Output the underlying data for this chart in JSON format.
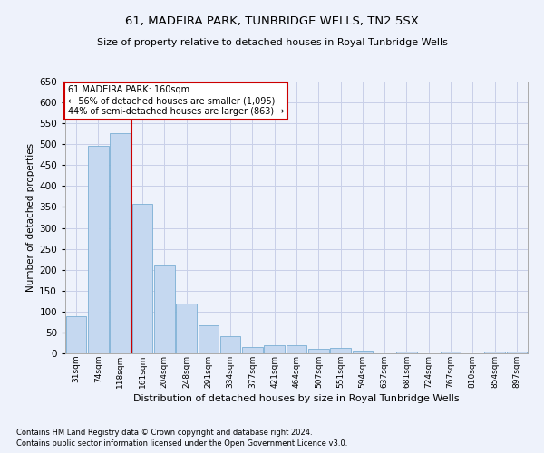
{
  "title1": "61, MADEIRA PARK, TUNBRIDGE WELLS, TN2 5SX",
  "title2": "Size of property relative to detached houses in Royal Tunbridge Wells",
  "xlabel": "Distribution of detached houses by size in Royal Tunbridge Wells",
  "ylabel": "Number of detached properties",
  "footnote1": "Contains HM Land Registry data © Crown copyright and database right 2024.",
  "footnote2": "Contains public sector information licensed under the Open Government Licence v3.0.",
  "annotation_title": "61 MADEIRA PARK: 160sqm",
  "annotation_line1": "← 56% of detached houses are smaller (1,095)",
  "annotation_line2": "44% of semi-detached houses are larger (863) →",
  "categories": [
    "31sqm",
    "74sqm",
    "118sqm",
    "161sqm",
    "204sqm",
    "248sqm",
    "291sqm",
    "334sqm",
    "377sqm",
    "421sqm",
    "464sqm",
    "507sqm",
    "551sqm",
    "594sqm",
    "637sqm",
    "681sqm",
    "724sqm",
    "767sqm",
    "810sqm",
    "854sqm",
    "897sqm"
  ],
  "values": [
    88,
    497,
    527,
    358,
    211,
    120,
    68,
    42,
    16,
    19,
    19,
    10,
    12,
    7,
    0,
    5,
    0,
    5,
    0,
    5,
    5
  ],
  "bar_color": "#c5d8f0",
  "bar_edge_color": "#7bafd4",
  "red_line_color": "#cc0000",
  "bg_color": "#eef2fb",
  "grid_color": "#c8cfe8",
  "annotation_box_color": "#ffffff",
  "annotation_box_edge": "#cc0000",
  "ylim": [
    0,
    650
  ],
  "yticks": [
    0,
    50,
    100,
    150,
    200,
    250,
    300,
    350,
    400,
    450,
    500,
    550,
    600,
    650
  ]
}
